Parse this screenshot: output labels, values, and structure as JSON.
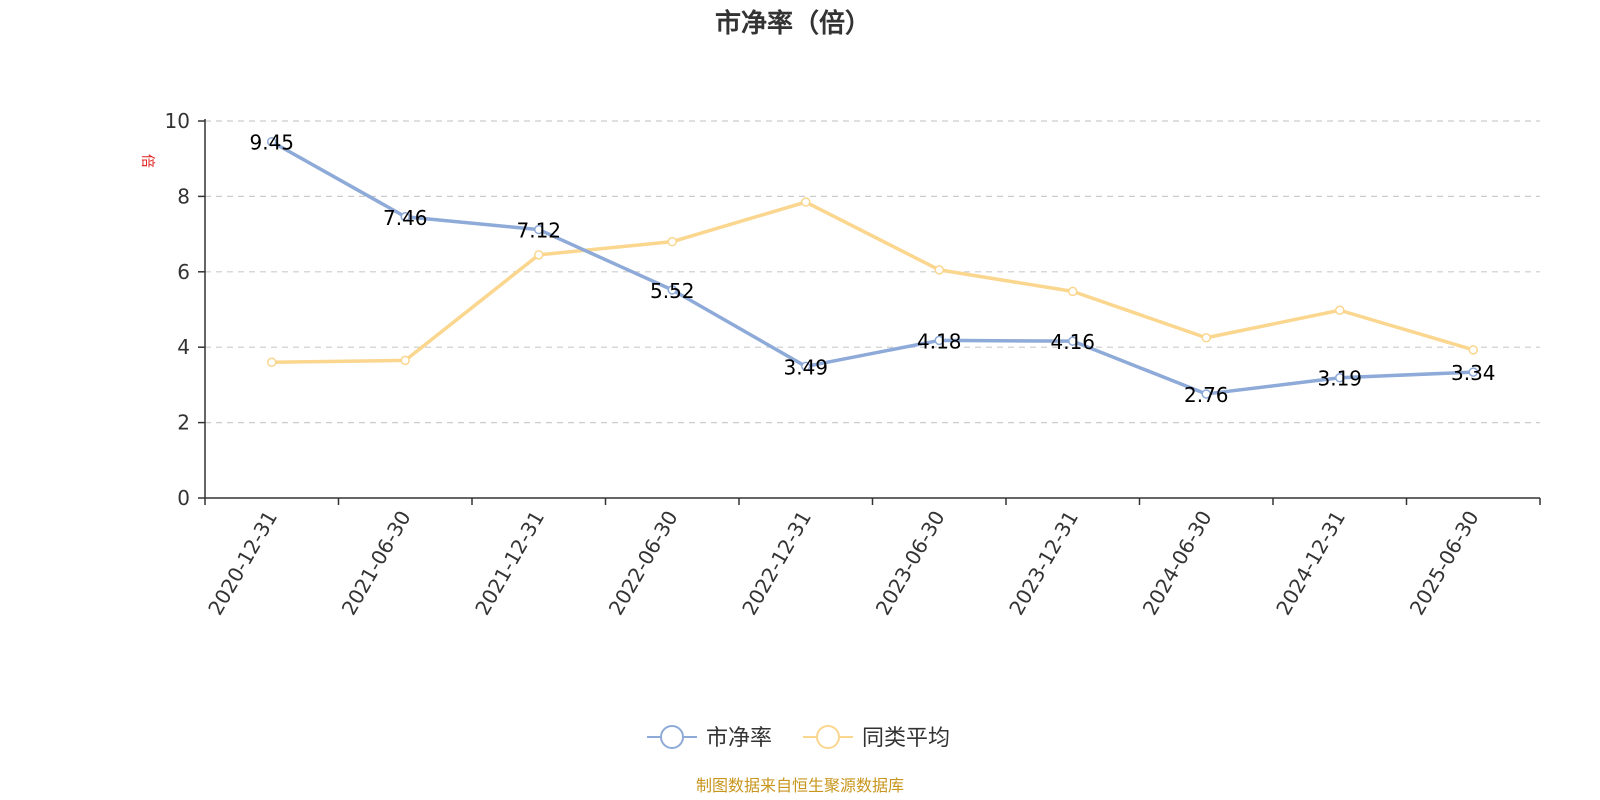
{
  "chart_data": {
    "type": "line",
    "title": "市净率（倍）",
    "ylabel": "倍",
    "xlabel": "",
    "ylim": [
      0,
      10
    ],
    "yticks": [
      0,
      2,
      4,
      6,
      8,
      10
    ],
    "grid": true,
    "legend_position": "bottom",
    "categories": [
      "2020-12-31",
      "2021-06-30",
      "2021-12-31",
      "2022-06-30",
      "2022-12-31",
      "2023-06-30",
      "2023-12-31",
      "2024-06-30",
      "2024-12-31",
      "2025-06-30"
    ],
    "series": [
      {
        "name": "市净率",
        "color": "#8eaad8",
        "show_labels": true,
        "values": [
          9.45,
          7.46,
          7.12,
          5.52,
          3.49,
          4.18,
          4.16,
          2.76,
          3.19,
          3.34
        ],
        "labels": [
          "9.45",
          "7.46",
          "7.12",
          "5.52",
          "3.49",
          "4.18",
          "4.16",
          "2.76",
          "3.19",
          "3.34"
        ]
      },
      {
        "name": "同类平均",
        "color": "#fad68e",
        "show_labels": false,
        "values": [
          3.6,
          3.65,
          6.45,
          6.8,
          7.85,
          6.05,
          5.48,
          4.25,
          4.98,
          3.93
        ]
      }
    ],
    "source": "制图数据来自恒生聚源数据库"
  },
  "colors": {
    "axis": "#333333",
    "grid": "#cccccc",
    "unit": "#e0201c",
    "source": "#c8961e"
  }
}
